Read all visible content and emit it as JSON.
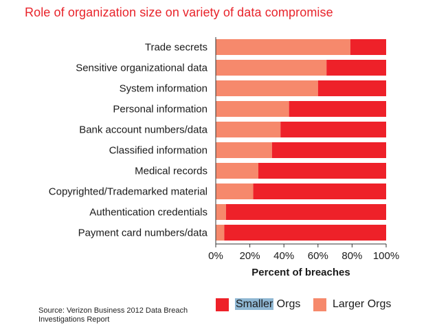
{
  "title": "Role of organization size on variety of data compromise",
  "source": "Source: Verizon Business 2012 Data Breach Investigations Report",
  "chart_data": {
    "type": "bar",
    "orientation": "horizontal",
    "stacked": true,
    "categories": [
      "Trade secrets",
      "Sensitive organizational data",
      "System information",
      "Personal information",
      "Bank account numbers/data",
      "Classified information",
      "Medical records",
      "Copyrighted/Trademarked material",
      "Authentication credentials",
      "Payment card numbers/data"
    ],
    "series": [
      {
        "name": "Larger Orgs",
        "color": "#f6896c",
        "values": [
          79,
          65,
          60,
          43,
          38,
          33,
          25,
          22,
          6,
          5
        ]
      },
      {
        "name": "Smaller Orgs",
        "color": "#ee2129",
        "values": [
          21,
          35,
          40,
          57,
          62,
          67,
          75,
          78,
          94,
          95
        ]
      }
    ],
    "xlabel": "Percent of breaches",
    "xlim": [
      0,
      100
    ],
    "xticks": [
      "0%",
      "20%",
      "40%",
      "60%",
      "80%",
      "100%"
    ],
    "legend": [
      {
        "label_pre": "Smaller",
        "label_post": " Orgs",
        "color": "#ee2129"
      },
      {
        "label": "Larger Orgs",
        "color": "#f6896c"
      }
    ],
    "legend_position": "bottom",
    "grid": false
  }
}
